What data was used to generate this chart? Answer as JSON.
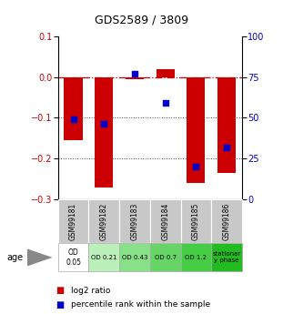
{
  "title": "GDS2589 / 3809",
  "samples": [
    "GSM99181",
    "GSM99182",
    "GSM99183",
    "GSM99184",
    "GSM99185",
    "GSM99186"
  ],
  "log2_ratio": [
    -0.155,
    -0.27,
    -0.005,
    0.018,
    -0.26,
    -0.235
  ],
  "percentile_rank": [
    49,
    46.5,
    77,
    59,
    20,
    32
  ],
  "ylim_left": [
    -0.3,
    0.1
  ],
  "ylim_right": [
    0,
    100
  ],
  "yticks_left": [
    0.1,
    0.0,
    -0.1,
    -0.2,
    -0.3
  ],
  "yticks_right": [
    100,
    75,
    50,
    25,
    0
  ],
  "bar_color": "#cc0000",
  "dot_color": "#0000cc",
  "bar_width": 0.6,
  "age_labels": [
    "OD\n0.05",
    "OD 0.21",
    "OD 0.43",
    "OD 0.7",
    "OD 1.2",
    "stationar\ny phase"
  ],
  "age_colors": [
    "#ffffff",
    "#bbf0bb",
    "#88e088",
    "#66d466",
    "#44cc44",
    "#22bb22"
  ],
  "gsm_bg_color": "#c8c8c8",
  "legend_log2_color": "#cc0000",
  "legend_pct_color": "#0000cc",
  "hline_color": "#cc0000",
  "dotted_line_color": "#555555",
  "title_fontsize": 9,
  "axis_fontsize": 7,
  "legend_fontsize": 6.5
}
